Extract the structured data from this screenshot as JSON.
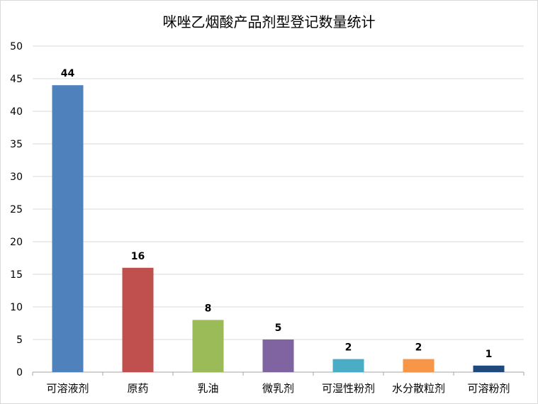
{
  "chart_data": {
    "type": "bar",
    "title": "咪唑乙烟酸产品剂型登记数量统计",
    "xlabel": "",
    "ylabel": "",
    "categories": [
      "可溶液剂",
      "原药",
      "乳油",
      "微乳剂",
      "可湿性粉剂",
      "水分散粒剂",
      "可溶粉剂"
    ],
    "values": [
      44,
      16,
      8,
      5,
      2,
      2,
      1
    ],
    "colors": [
      "#4f81bd",
      "#c0504d",
      "#9bbb59",
      "#8064a2",
      "#4bacc6",
      "#f79646",
      "#1f497d"
    ],
    "ylim": [
      0,
      50
    ],
    "yticks": [
      0,
      5,
      10,
      15,
      20,
      25,
      30,
      35,
      40,
      45,
      50
    ],
    "grid": true,
    "legend": "none",
    "data_labels": true
  }
}
